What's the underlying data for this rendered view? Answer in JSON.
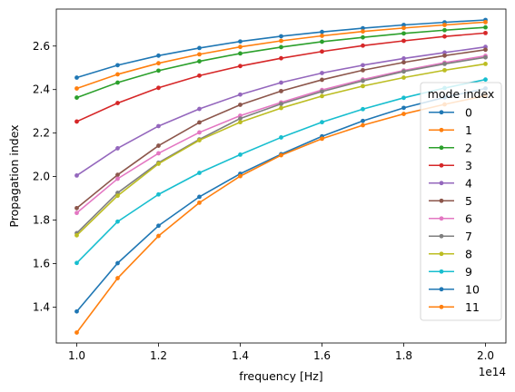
{
  "chart_data": {
    "type": "line",
    "xlabel": "frequency [Hz]",
    "ylabel": "Propagation index",
    "x_offset_label": "1e14",
    "xlim": [
      0.95,
      2.05
    ],
    "ylim": [
      1.235,
      2.77
    ],
    "x_ticks": [
      "1.0",
      "1.2",
      "1.4",
      "1.6",
      "1.8",
      "2.0"
    ],
    "y_ticks": [
      "1.4",
      "1.6",
      "1.8",
      "2.0",
      "2.2",
      "2.4",
      "2.6"
    ],
    "legend": {
      "title": "mode index",
      "placement": "center-right"
    },
    "x": [
      1.0,
      1.1,
      1.2,
      1.3,
      1.4,
      1.5,
      1.6,
      1.7,
      1.8,
      1.9,
      2.0
    ],
    "series": [
      {
        "name": "0",
        "color": "#1f77b4",
        "values": [
          2.455,
          2.512,
          2.556,
          2.591,
          2.621,
          2.645,
          2.665,
          2.682,
          2.697,
          2.709,
          2.72
        ]
      },
      {
        "name": "1",
        "color": "#ff7f0e",
        "values": [
          2.405,
          2.47,
          2.521,
          2.562,
          2.596,
          2.624,
          2.647,
          2.667,
          2.683,
          2.697,
          2.71
        ]
      },
      {
        "name": "2",
        "color": "#2ca02c",
        "values": [
          2.363,
          2.432,
          2.487,
          2.53,
          2.566,
          2.595,
          2.62,
          2.64,
          2.658,
          2.673,
          2.686
        ]
      },
      {
        "name": "3",
        "color": "#d62728",
        "values": [
          2.253,
          2.338,
          2.408,
          2.464,
          2.508,
          2.544,
          2.575,
          2.602,
          2.624,
          2.644,
          2.66
        ]
      },
      {
        "name": "4",
        "color": "#9467bd",
        "values": [
          2.005,
          2.13,
          2.232,
          2.311,
          2.377,
          2.432,
          2.476,
          2.512,
          2.543,
          2.57,
          2.596
        ]
      },
      {
        "name": "5",
        "color": "#8c564b",
        "values": [
          1.855,
          2.008,
          2.142,
          2.249,
          2.33,
          2.393,
          2.445,
          2.489,
          2.525,
          2.556,
          2.583
        ]
      },
      {
        "name": "6",
        "color": "#e377c2",
        "values": [
          1.833,
          1.99,
          2.107,
          2.203,
          2.28,
          2.341,
          2.398,
          2.446,
          2.488,
          2.524,
          2.555
        ]
      },
      {
        "name": "7",
        "color": "#7f7f7f",
        "values": [
          1.74,
          1.925,
          2.064,
          2.171,
          2.267,
          2.334,
          2.391,
          2.44,
          2.483,
          2.518,
          2.548
        ]
      },
      {
        "name": "8",
        "color": "#bcbd22",
        "values": [
          1.73,
          1.912,
          2.059,
          2.167,
          2.25,
          2.315,
          2.37,
          2.416,
          2.455,
          2.489,
          2.518
        ]
      },
      {
        "name": "9",
        "color": "#17becf",
        "values": [
          1.603,
          1.793,
          1.918,
          2.017,
          2.101,
          2.18,
          2.25,
          2.31,
          2.362,
          2.407,
          2.446
        ]
      },
      {
        "name": "10",
        "color": "#1f77b4",
        "values": [
          1.38,
          1.602,
          1.774,
          1.907,
          2.013,
          2.103,
          2.185,
          2.256,
          2.316,
          2.364,
          2.405
        ]
      },
      {
        "name": "11",
        "color": "#ff7f0e",
        "values": [
          1.283,
          1.533,
          1.727,
          1.88,
          2.002,
          2.098,
          2.174,
          2.236,
          2.288,
          2.332,
          2.372
        ]
      }
    ]
  }
}
